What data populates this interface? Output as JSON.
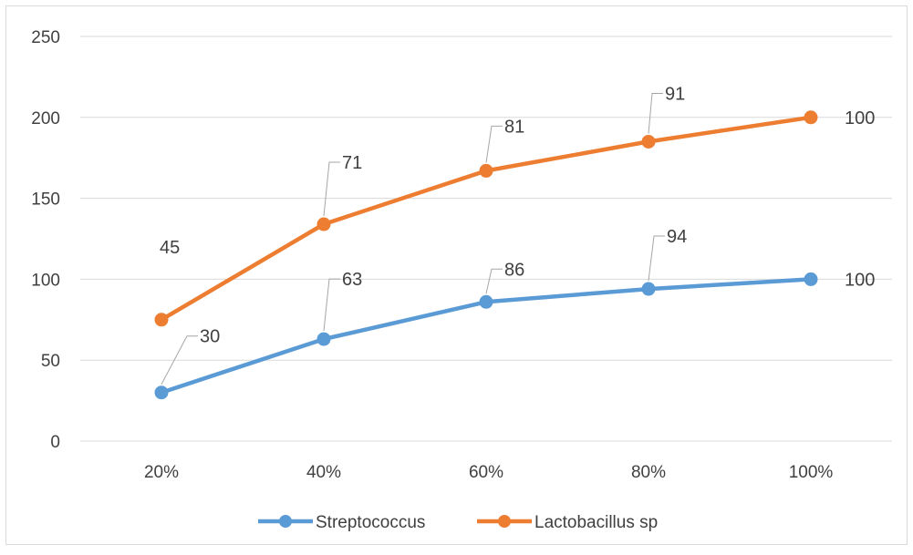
{
  "chart_data": {
    "type": "line",
    "categories": [
      "20%",
      "40%",
      "60%",
      "80%",
      "100%"
    ],
    "ylim": [
      0,
      250
    ],
    "yticks": [
      0,
      50,
      100,
      150,
      200,
      250
    ],
    "grid": "horizontal",
    "legend_position": "bottom",
    "series": [
      {
        "name": "Streptococcus",
        "color": "#5B9BD5",
        "values": [
          30,
          63,
          86,
          94,
          100
        ],
        "labels": [
          "30",
          "63",
          "86",
          "94",
          "100"
        ]
      },
      {
        "name": "Lactobacillus sp",
        "color": "#ED7D31",
        "values": [
          75,
          134,
          167,
          185,
          200
        ],
        "labels": [
          "45",
          "71",
          "81",
          "91",
          "100"
        ]
      }
    ]
  }
}
